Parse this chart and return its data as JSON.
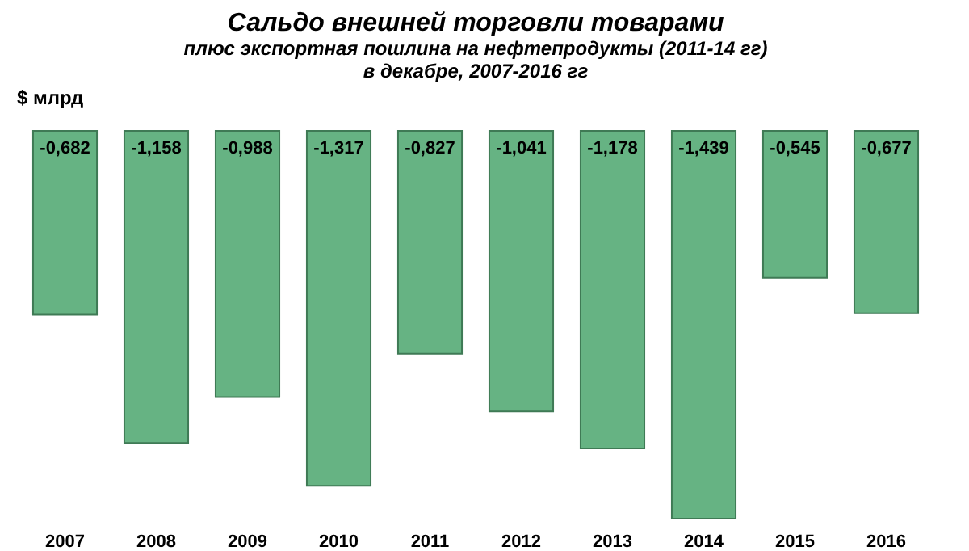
{
  "chart_data": {
    "type": "bar",
    "title": "Сальдо внешней торговли товарами",
    "subtitle": "плюс экспортная пошлина на нефтепродукты (2011-14 гг)\nв декабре, 2007-2016 гг",
    "ylabel": "$ млрд",
    "categories": [
      "2007",
      "2008",
      "2009",
      "2010",
      "2011",
      "2012",
      "2013",
      "2014",
      "2015",
      "2016"
    ],
    "values": [
      -0.682,
      -1.158,
      -0.988,
      -1.317,
      -0.827,
      -1.041,
      -1.178,
      -1.439,
      -0.545,
      -0.677
    ],
    "value_labels": [
      "-0,682",
      "-1,158",
      "-0,988",
      "-1,317",
      "-0,827",
      "-1,041",
      "-1,178",
      "-1,439",
      "-0,545",
      "-0,677"
    ],
    "color": "#66b383"
  }
}
